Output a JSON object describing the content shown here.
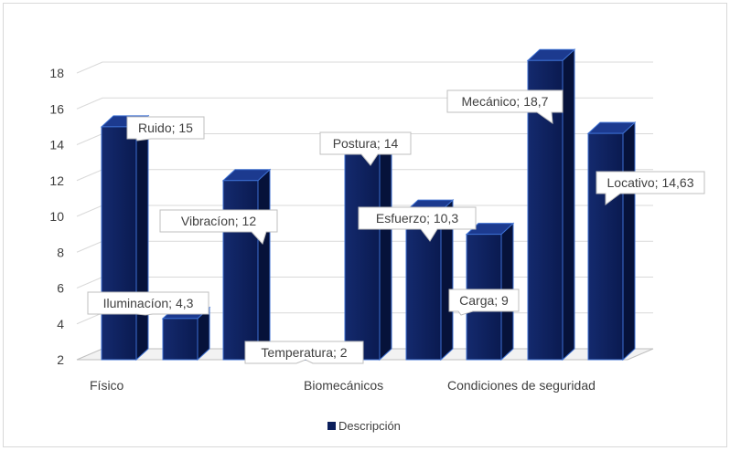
{
  "chart_data": {
    "type": "bar",
    "series": [
      {
        "name": "Descripción",
        "color": "#0b1f5c",
        "bars": [
          {
            "label": "Ruido; 15",
            "value": 15
          },
          {
            "label": "Iluminacíon; 4,3",
            "value": 4.3
          },
          {
            "label": "Vibracíon; 12",
            "value": 12
          },
          {
            "label": "Temperatura; 2",
            "value": 2
          },
          {
            "label": "Postura; 14",
            "value": 14
          },
          {
            "label": "Esfuerzo; 10,3",
            "value": 10.3
          },
          {
            "label": "Carga; 9",
            "value": 9
          },
          {
            "label": "Mecánico; 18,7",
            "value": 18.7
          },
          {
            "label": "Locativo; 14,63",
            "value": 14.63
          }
        ]
      }
    ],
    "category_labels": [
      "Físico",
      "Biomecánicos",
      "Condiciones de seguridad"
    ],
    "y_ticks": [
      "2",
      "4",
      "6",
      "8",
      "10",
      "12",
      "14",
      "16",
      "18"
    ],
    "ylim": [
      2,
      18
    ],
    "grid": true,
    "legend_position": "bottom"
  }
}
